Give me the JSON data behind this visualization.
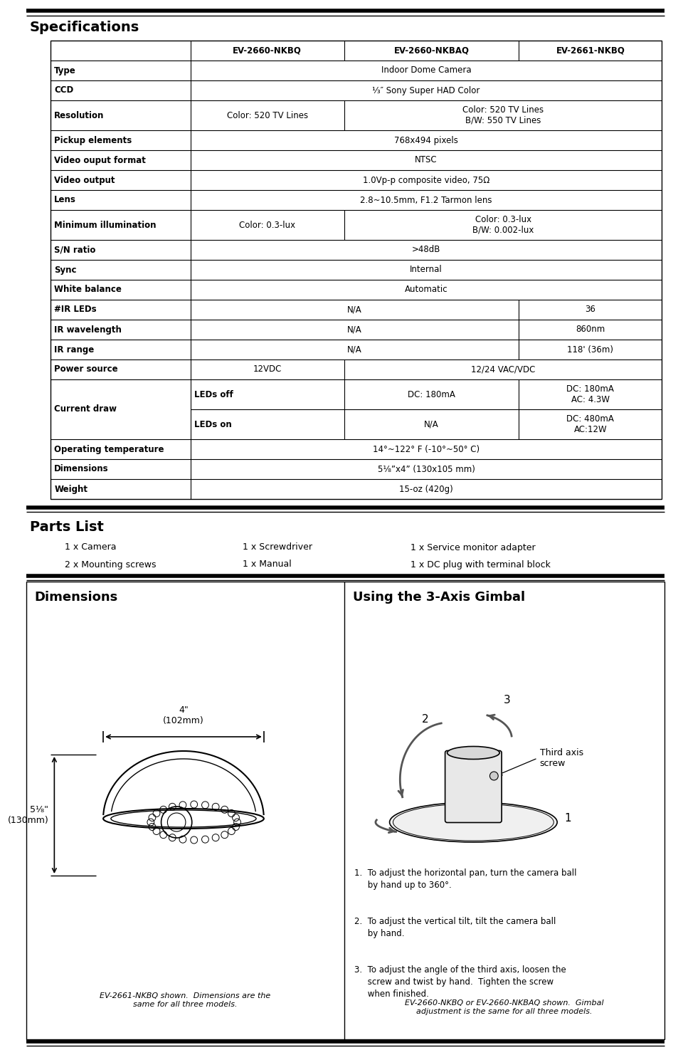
{
  "title_specs": "Specifications",
  "title_parts": "Parts List",
  "title_dims": "Dimensions",
  "title_gimbal": "Using the 3-Axis Gimbal",
  "specs_table": {
    "headers": [
      "",
      "EV-2660-NKBQ",
      "EV-2660-NKBAQ",
      "EV-2661-NKBQ"
    ]
  },
  "parts_list": {
    "col1": [
      "1 x Camera",
      "2 x Mounting screws"
    ],
    "col2": [
      "1 x Screwdriver",
      "1 x Manual"
    ],
    "col3": [
      "1 x Service monitor adapter",
      "1 x DC plug with terminal block"
    ]
  },
  "dims_section": {
    "width_label": "4\"\n(102mm)",
    "height_label": "5¹⁄₈\"\n(130mm)",
    "caption": "EV-2661-NKBQ shown.  Dimensions are the\nsame for all three models."
  },
  "gimbal_section": {
    "instructions": [
      "To adjust the horizontal pan, turn the camera ball\nby hand up to 360°.",
      "To adjust the vertical tilt, tilt the camera ball\nby hand.",
      "To adjust the angle of the third axis, loosen the\nscrew and twist by hand.  Tighten the screw\nwhen finished."
    ],
    "caption": "EV-2660-NKBQ or EV-2660-NKBAQ shown.  Gimbal\nadjustment is the same for all three models."
  },
  "bg_color": "#ffffff"
}
